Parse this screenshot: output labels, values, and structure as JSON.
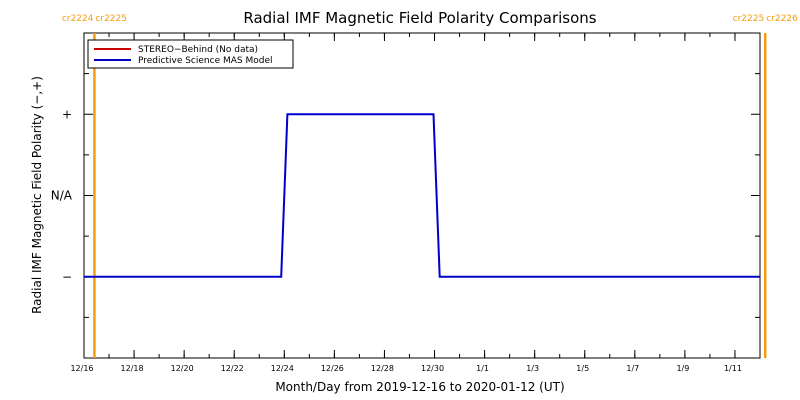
{
  "chart_data": {
    "type": "line",
    "title": "Radial IMF Magnetic Field Polarity Comparisons",
    "xlabel": "Month/Day from 2019-12-16 to 2020-01-12 (UT)",
    "ylabel": "Radial IMF Magnetic Field Polarity (−,+)",
    "x_range": [
      "2019-12-16",
      "2020-01-12"
    ],
    "x_ticks": [
      {
        "date": "2019-12-16",
        "label": "12/16"
      },
      {
        "date": "2019-12-18",
        "label": "12/18"
      },
      {
        "date": "2019-12-20",
        "label": "12/20"
      },
      {
        "date": "2019-12-22",
        "label": "12/22"
      },
      {
        "date": "2019-12-24",
        "label": "12/24"
      },
      {
        "date": "2019-12-26",
        "label": "12/26"
      },
      {
        "date": "2019-12-28",
        "label": "12/28"
      },
      {
        "date": "2019-12-30",
        "label": "12/30"
      },
      {
        "date": "2020-01-01",
        "label": "1/1"
      },
      {
        "date": "2020-01-03",
        "label": "1/3"
      },
      {
        "date": "2020-01-05",
        "label": "1/5"
      },
      {
        "date": "2020-01-07",
        "label": "1/7"
      },
      {
        "date": "2020-01-09",
        "label": "1/9"
      },
      {
        "date": "2020-01-11",
        "label": "1/11"
      }
    ],
    "y_ticks": [
      {
        "value": 1,
        "label": "+"
      },
      {
        "value": 0,
        "label": "N/A"
      },
      {
        "value": -1,
        "label": "−"
      }
    ],
    "ylim": [
      -2,
      2
    ],
    "legend_position": "top-left",
    "series": [
      {
        "name": "STEREO−Behind (No data)",
        "color": "#cc0000",
        "points": []
      },
      {
        "name": "Predictive Science MAS Model",
        "color": "#0000cc",
        "points": [
          {
            "x": "2019-12-16T00:00",
            "y": -1
          },
          {
            "x": "2019-12-23T21:00",
            "y": -1
          },
          {
            "x": "2019-12-24T03:00",
            "y": 1
          },
          {
            "x": "2019-12-29T23:00",
            "y": 1
          },
          {
            "x": "2019-12-30T05:00",
            "y": -1
          },
          {
            "x": "2020-01-12T00:00",
            "y": -1
          }
        ]
      }
    ],
    "carrington_markers": [
      {
        "date": "2019-12-16T10:00",
        "left_label": "cr2224",
        "right_label": "cr2225",
        "color": "#f39c12"
      },
      {
        "date": "2020-01-12T05:00",
        "left_label": "cr2225",
        "right_label": "cr2226",
        "color": "#f39c12"
      }
    ]
  }
}
